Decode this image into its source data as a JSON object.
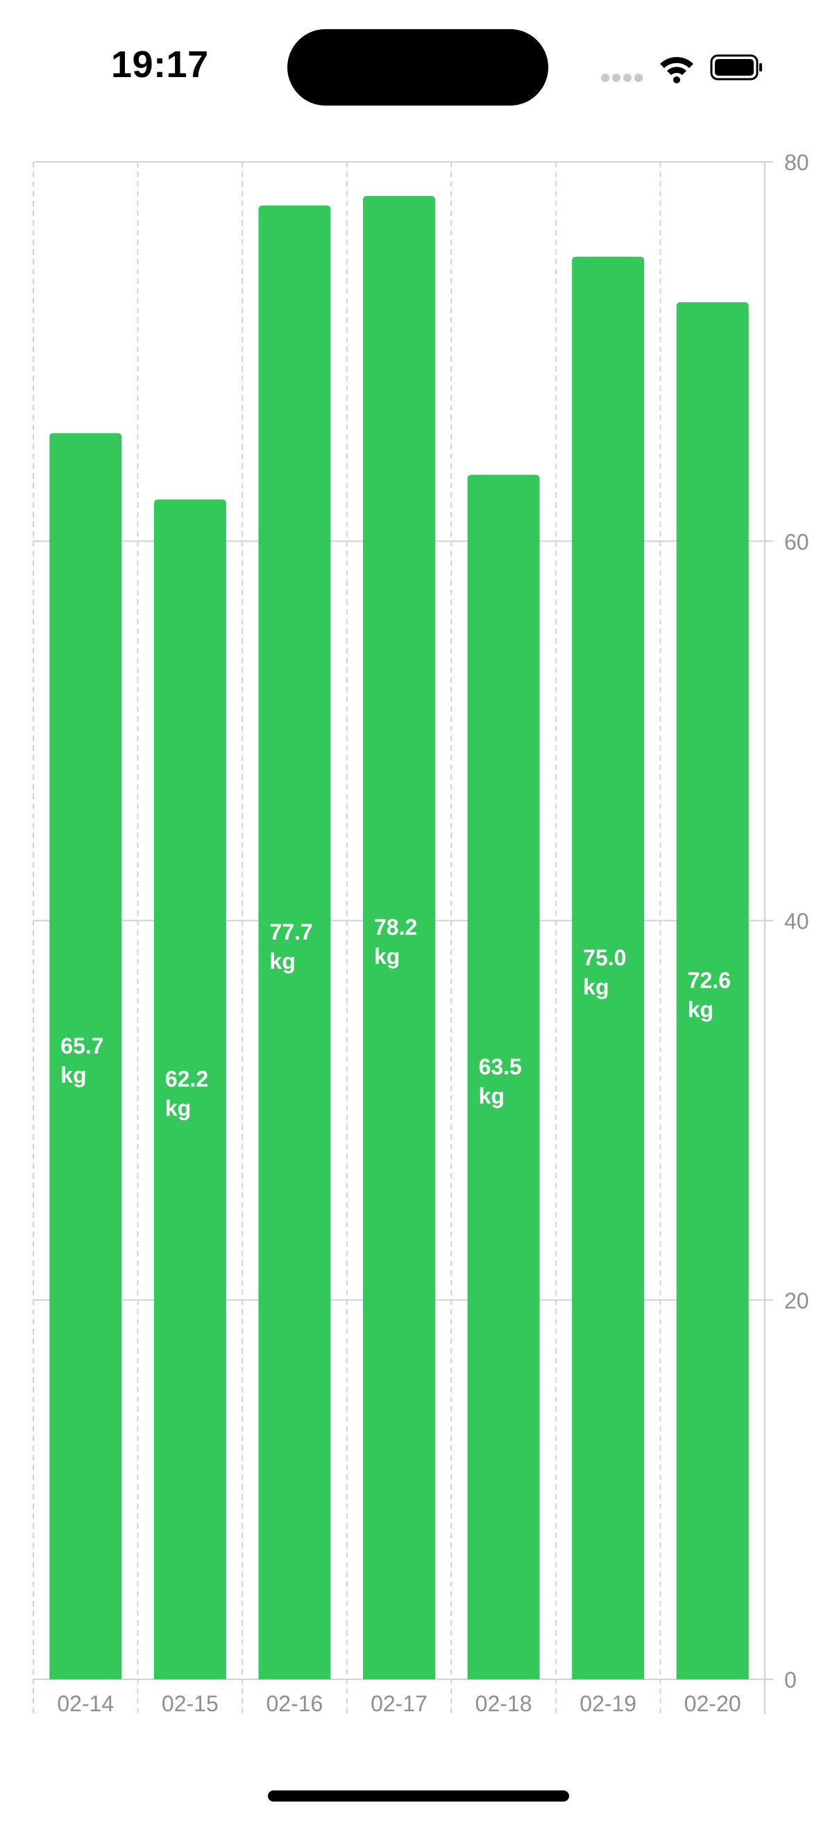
{
  "status_bar": {
    "time": "19:17"
  },
  "chart_data": {
    "type": "bar",
    "categories": [
      "02-14",
      "02-15",
      "02-16",
      "02-17",
      "02-18",
      "02-19",
      "02-20"
    ],
    "values": [
      65.7,
      62.2,
      77.7,
      78.2,
      63.5,
      75.0,
      72.6
    ],
    "value_labels": [
      [
        "65.7",
        "kg"
      ],
      [
        "62.2",
        "kg"
      ],
      [
        "77.7",
        "kg"
      ],
      [
        "78.2",
        "kg"
      ],
      [
        "63.5",
        "kg"
      ],
      [
        "75.0",
        "kg"
      ],
      [
        "72.6",
        "kg"
      ]
    ],
    "unit": "kg",
    "ylim": [
      0,
      80
    ],
    "yticks": [
      0,
      20,
      40,
      60,
      80
    ],
    "ytick_labels": [
      "0",
      "20",
      "40",
      "60",
      "80"
    ],
    "yaxis_side": "right",
    "grid": true,
    "bar_color": "#34C759",
    "label_color": "#FFFFFF",
    "title": "",
    "xlabel": "",
    "ylabel": ""
  }
}
